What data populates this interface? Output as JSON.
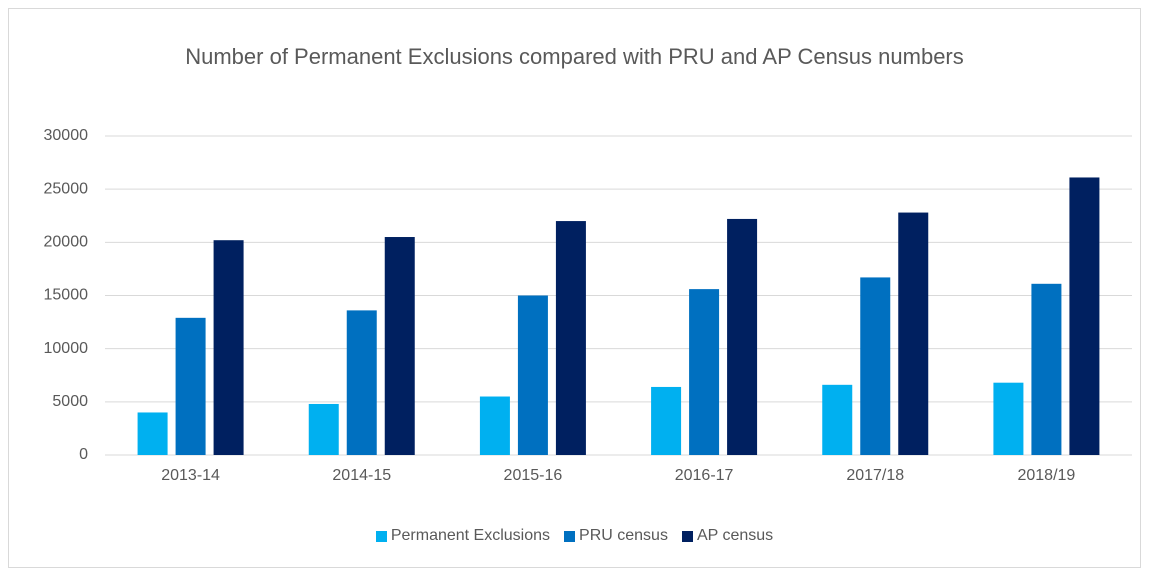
{
  "chart_data": {
    "type": "bar",
    "title": "Number of Permanent Exclusions compared with PRU and AP Census numbers",
    "categories": [
      "2013-14",
      "2014-15",
      "2015-16",
      "2016-17",
      "2017/18",
      "2018/19"
    ],
    "series": [
      {
        "name": "Permanent Exclusions",
        "color": "#00b0f0",
        "values": [
          4000,
          4800,
          5500,
          6400,
          6600,
          6800
        ]
      },
      {
        "name": "PRU census",
        "color": "#0070c0",
        "values": [
          12900,
          13600,
          15000,
          15600,
          16700,
          16100
        ]
      },
      {
        "name": "AP census",
        "color": "#002060",
        "values": [
          20200,
          20500,
          22000,
          22200,
          22800,
          26100
        ]
      }
    ],
    "ylim": [
      0,
      30000
    ],
    "yticks": [
      0,
      5000,
      10000,
      15000,
      20000,
      25000,
      30000
    ],
    "grid": true,
    "legend": "bottom"
  }
}
